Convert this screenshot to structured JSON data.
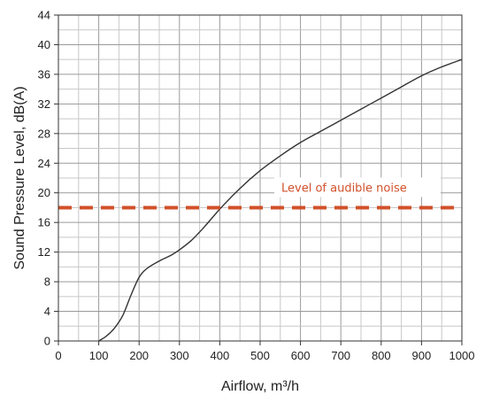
{
  "chart_data": {
    "type": "line",
    "xlabel": "Airflow, m³/h",
    "ylabel": "Sound Pressure Level, dB(A)",
    "xlim": [
      0,
      1000
    ],
    "ylim": [
      0,
      44
    ],
    "x_ticks": [
      0,
      100,
      200,
      300,
      400,
      500,
      600,
      700,
      800,
      900,
      1000
    ],
    "y_ticks": [
      0,
      4,
      8,
      12,
      16,
      20,
      24,
      28,
      32,
      36,
      40,
      44
    ],
    "grid": true,
    "series": [
      {
        "color": "#333333",
        "x": [
          100,
          120,
          140,
          160,
          180,
          200,
          220,
          250,
          280,
          300,
          330,
          360,
          400,
          450,
          500,
          550,
          600,
          650,
          700,
          750,
          800,
          850,
          900,
          950,
          1000
        ],
        "y": [
          0,
          0.7,
          1.8,
          3.5,
          6.2,
          8.6,
          9.8,
          10.8,
          11.6,
          12.3,
          13.6,
          15.3,
          17.8,
          20.6,
          23.0,
          25.0,
          26.8,
          28.3,
          29.8,
          31.3,
          32.8,
          34.3,
          35.8,
          37.0,
          38.0
        ]
      }
    ],
    "reference_line": {
      "y": 18,
      "color": "#d2502a",
      "label": "Level of audible noise"
    }
  }
}
